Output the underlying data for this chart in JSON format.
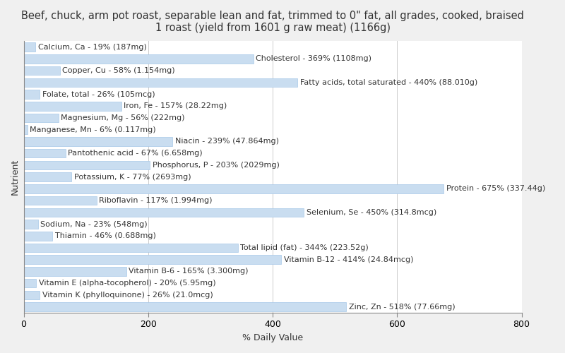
{
  "title": "Beef, chuck, arm pot roast, separable lean and fat, trimmed to 0\" fat, all grades, cooked, braised\n1 roast (yield from 1601 g raw meat) (1166g)",
  "xlabel": "% Daily Value",
  "ylabel": "Nutrient",
  "nutrients": [
    "Calcium, Ca - 19% (187mg)",
    "Cholesterol - 369% (1108mg)",
    "Copper, Cu - 58% (1.154mg)",
    "Fatty acids, total saturated - 440% (88.010g)",
    "Folate, total - 26% (105mcg)",
    "Iron, Fe - 157% (28.22mg)",
    "Magnesium, Mg - 56% (222mg)",
    "Manganese, Mn - 6% (0.117mg)",
    "Niacin - 239% (47.864mg)",
    "Pantothenic acid - 67% (6.658mg)",
    "Phosphorus, P - 203% (2029mg)",
    "Potassium, K - 77% (2693mg)",
    "Protein - 675% (337.44g)",
    "Riboflavin - 117% (1.994mg)",
    "Selenium, Se - 450% (314.8mcg)",
    "Sodium, Na - 23% (548mg)",
    "Thiamin - 46% (0.688mg)",
    "Total lipid (fat) - 344% (223.52g)",
    "Vitamin B-12 - 414% (24.84mcg)",
    "Vitamin B-6 - 165% (3.300mg)",
    "Vitamin E (alpha-tocopherol) - 20% (5.95mg)",
    "Vitamin K (phylloquinone) - 26% (21.0mcg)",
    "Zinc, Zn - 518% (77.66mg)"
  ],
  "values": [
    19,
    369,
    58,
    440,
    26,
    157,
    56,
    6,
    239,
    67,
    203,
    77,
    675,
    117,
    450,
    23,
    46,
    344,
    414,
    165,
    20,
    26,
    518
  ],
  "bar_color": "#c9ddf0",
  "bar_edge_color": "#a8c8e8",
  "background_color": "#f0f0f0",
  "plot_background_color": "#ffffff",
  "text_color": "#333333",
  "title_fontsize": 10.5,
  "label_fontsize": 8.0,
  "tick_fontsize": 9,
  "xlim": [
    0,
    800
  ],
  "xticks": [
    0,
    200,
    400,
    600,
    800
  ]
}
